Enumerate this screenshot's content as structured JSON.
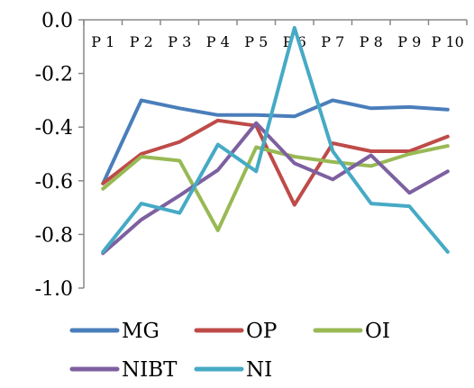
{
  "chart_data": {
    "type": "line",
    "categories": [
      "P 1",
      "P 2",
      "P 3",
      "P 4",
      "P 5",
      "P 6",
      "P 7",
      "P 8",
      "P 9",
      "P 10"
    ],
    "ylim": [
      -1.0,
      0.0
    ],
    "y_ticks": [
      "0.0",
      "-0.2",
      "-0.4",
      "-0.6",
      "-0.8",
      "-1.0"
    ],
    "grid": false,
    "legend_position": "bottom",
    "series": [
      {
        "name": "MG",
        "color": "#4a7ebb",
        "values": [
          -0.61,
          -0.3,
          -0.33,
          -0.355,
          -0.355,
          -0.36,
          -0.3,
          -0.33,
          -0.325,
          -0.335
        ]
      },
      {
        "name": "OP",
        "color": "#be4b48",
        "values": [
          -0.61,
          -0.5,
          -0.455,
          -0.375,
          -0.395,
          -0.69,
          -0.46,
          -0.49,
          -0.49,
          -0.435
        ]
      },
      {
        "name": "OI",
        "color": "#98b954",
        "values": [
          -0.63,
          -0.51,
          -0.525,
          -0.785,
          -0.475,
          -0.51,
          -0.53,
          -0.545,
          -0.5,
          -0.47
        ]
      },
      {
        "name": "NIBT",
        "color": "#7d60a0",
        "values": [
          -0.87,
          -0.745,
          -0.655,
          -0.56,
          -0.385,
          -0.535,
          -0.595,
          -0.505,
          -0.645,
          -0.565
        ]
      },
      {
        "name": "NI",
        "color": "#46aac5",
        "values": [
          -0.865,
          -0.685,
          -0.72,
          -0.465,
          -0.565,
          -0.03,
          -0.49,
          -0.685,
          -0.695,
          -0.865
        ]
      }
    ]
  }
}
